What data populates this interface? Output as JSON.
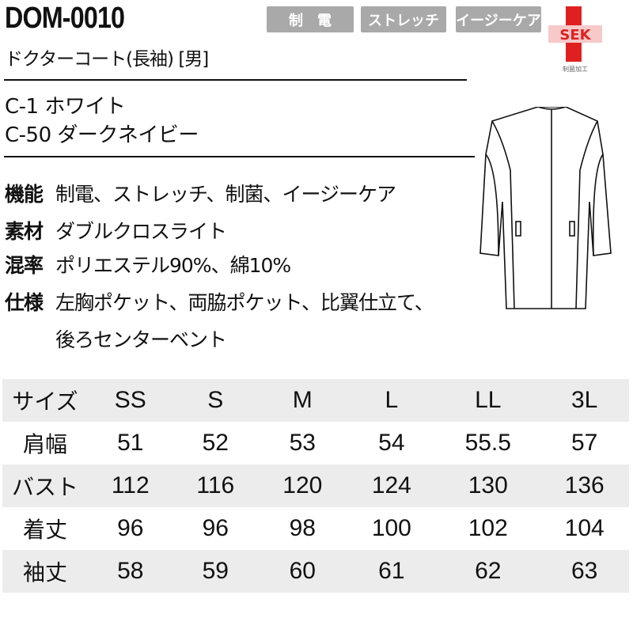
{
  "product": {
    "code": "DOM-0010",
    "name": "ドクターコート(長袖) [男]"
  },
  "badges": [
    "制　電",
    "ストレッチ",
    "イージーケア"
  ],
  "logo": {
    "text": "SEK",
    "caption": "制菌加工",
    "color": "#e02020"
  },
  "colors": [
    "C-1 ホワイト",
    "C-50 ダークネイビー"
  ],
  "specs": [
    {
      "key": "機能",
      "value": "制電、ストレッチ、制菌、イージーケア"
    },
    {
      "key": "素材",
      "value": "ダブルクロスライト"
    },
    {
      "key": "混率",
      "value": "ポリエステル90%、綿10%"
    },
    {
      "key": "仕様",
      "value": "左胸ポケット、両脇ポケット、比翼仕立て、",
      "value2": "後ろセンターベント"
    }
  ],
  "size_table": {
    "header": [
      "サイズ",
      "SS",
      "S",
      "M",
      "L",
      "LL",
      "3L"
    ],
    "rows": [
      [
        "肩幅",
        "51",
        "52",
        "53",
        "54",
        "55.5",
        "57"
      ],
      [
        "バスト",
        "112",
        "116",
        "120",
        "124",
        "130",
        "136"
      ],
      [
        "着丈",
        "96",
        "96",
        "98",
        "100",
        "102",
        "104"
      ],
      [
        "袖丈",
        "58",
        "59",
        "60",
        "61",
        "62",
        "63"
      ]
    ]
  }
}
